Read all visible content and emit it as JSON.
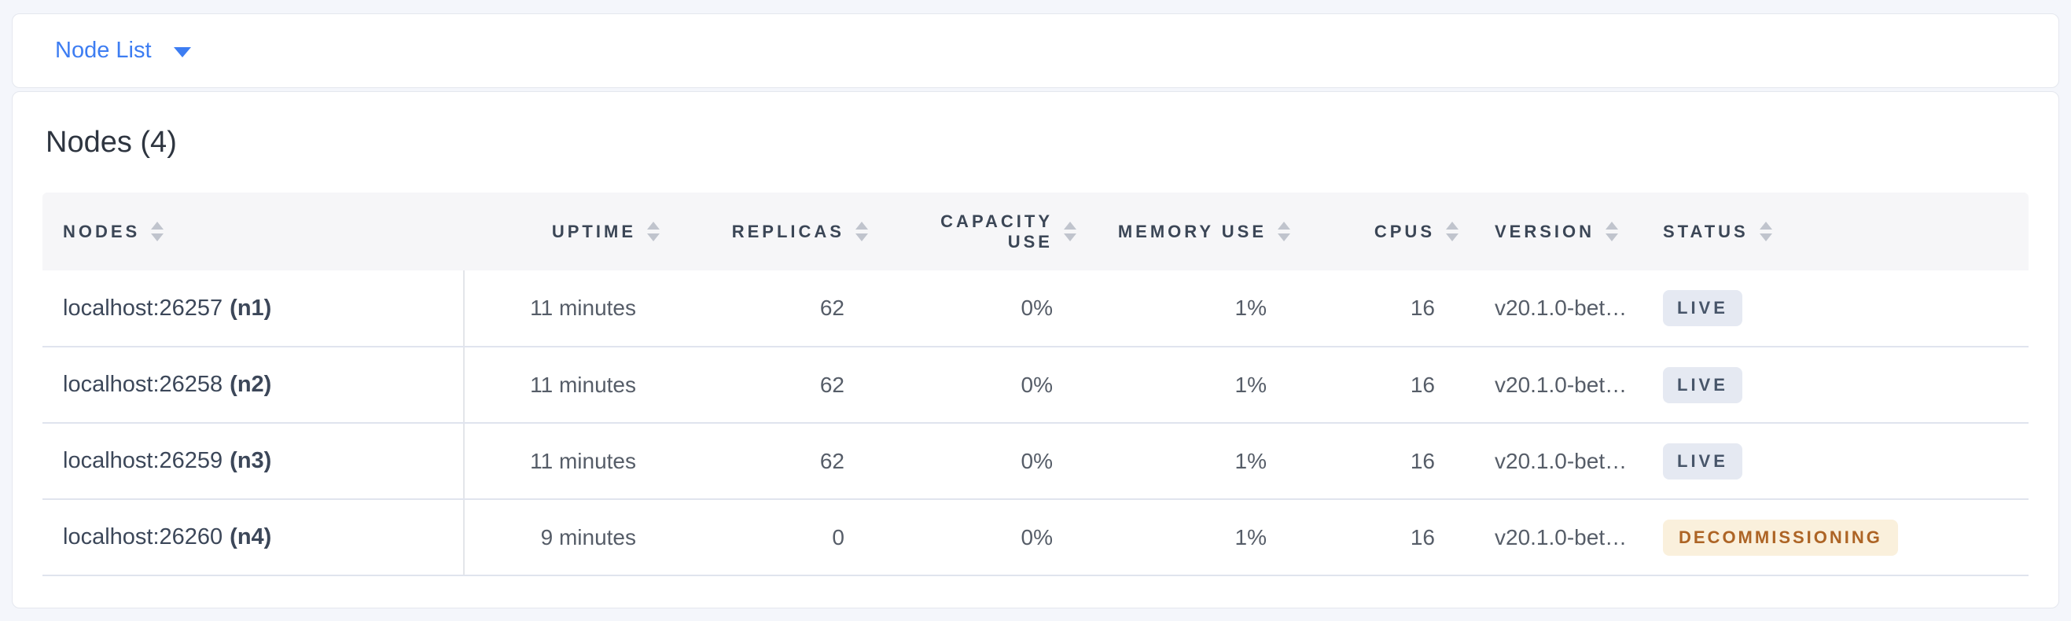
{
  "colors": {
    "accent_blue": "#3d7df2",
    "status_live_bg": "#e5e9f2",
    "status_live_text": "#475569",
    "status_decommissioning_bg": "#faf0dc",
    "status_decommissioning_text": "#ad6425"
  },
  "icons": {
    "dropdown_caret": "chevron-down solid triangle",
    "column_sort": "stacked up/down triangles"
  },
  "view_selector": {
    "label": "Node List"
  },
  "nodes_summary": {
    "title": "Nodes (4)"
  },
  "table": {
    "columns": [
      {
        "key": "nodes",
        "label": "NODES",
        "align": "left"
      },
      {
        "key": "uptime",
        "label": "UPTIME",
        "align": "right"
      },
      {
        "key": "replicas",
        "label": "REPLICAS",
        "align": "right"
      },
      {
        "key": "capacity_use",
        "label": "CAPACITY USE",
        "align": "right"
      },
      {
        "key": "memory_use",
        "label": "MEMORY USE",
        "align": "right"
      },
      {
        "key": "cpus",
        "label": "CPUS",
        "align": "right"
      },
      {
        "key": "version",
        "label": "VERSION",
        "align": "left"
      },
      {
        "key": "status",
        "label": "STATUS",
        "align": "left"
      }
    ],
    "rows": [
      {
        "nodes_address": "localhost:26257",
        "nodes_id": "(n1)",
        "uptime": "11 minutes",
        "replicas": "62",
        "capacity_use": "0%",
        "memory_use": "1%",
        "cpus": "16",
        "version": "v20.1.0-bet…",
        "status": "LIVE",
        "status_type": "live"
      },
      {
        "nodes_address": "localhost:26258",
        "nodes_id": "(n2)",
        "uptime": "11 minutes",
        "replicas": "62",
        "capacity_use": "0%",
        "memory_use": "1%",
        "cpus": "16",
        "version": "v20.1.0-bet…",
        "status": "LIVE",
        "status_type": "live"
      },
      {
        "nodes_address": "localhost:26259",
        "nodes_id": "(n3)",
        "uptime": "11 minutes",
        "replicas": "62",
        "capacity_use": "0%",
        "memory_use": "1%",
        "cpus": "16",
        "version": "v20.1.0-bet…",
        "status": "LIVE",
        "status_type": "live"
      },
      {
        "nodes_address": "localhost:26260",
        "nodes_id": "(n4)",
        "uptime": "9 minutes",
        "replicas": "0",
        "capacity_use": "0%",
        "memory_use": "1%",
        "cpus": "16",
        "version": "v20.1.0-bet…",
        "status": "DECOMMISSIONING",
        "status_type": "decommissioning"
      }
    ]
  }
}
